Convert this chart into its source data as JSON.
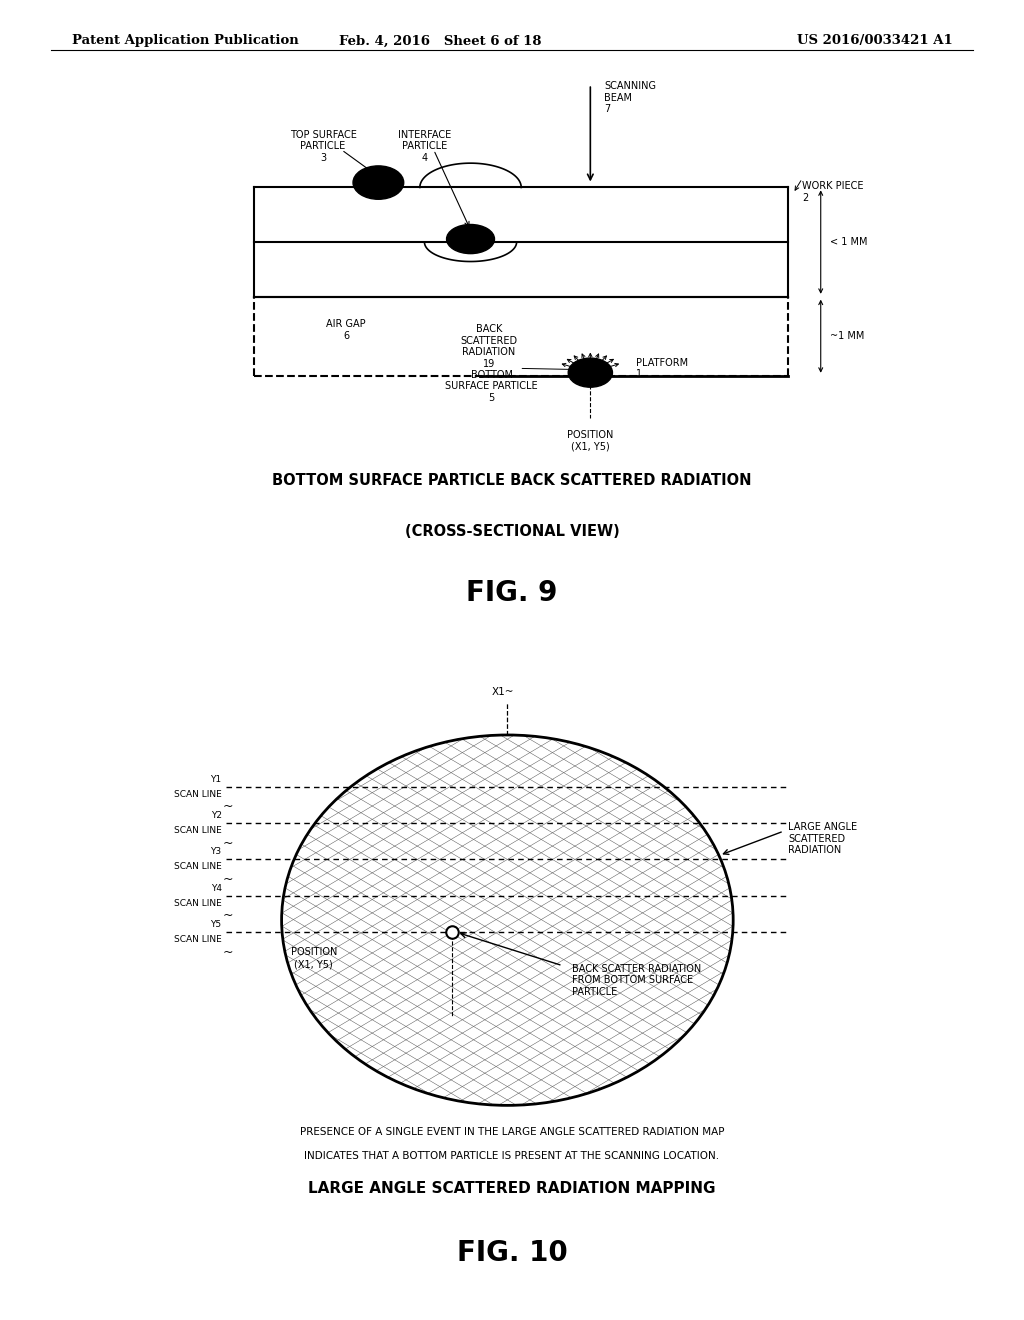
{
  "background_color": "#ffffff",
  "header_left": "Patent Application Publication",
  "header_mid": "Feb. 4, 2016   Sheet 6 of 18",
  "header_right": "US 2016/0033421 A1",
  "fig9": {
    "title_line1": "BOTTOM SURFACE PARTICLE BACK SCATTERED RADIATION",
    "title_line2": "(CROSS-SECTIONAL VIEW)",
    "title_fig": "FIG. 9"
  },
  "fig10": {
    "title_line1": "LARGE ANGLE SCATTERED RADIATION MAPPING",
    "title_fig": "FIG. 10",
    "caption_line1": "PRESENCE OF A SINGLE EVENT IN THE LARGE ANGLE SCATTERED RADIATION MAP",
    "caption_line2": "INDICATES THAT A BOTTOM PARTICLE IS PRESENT AT THE SCANNING LOCATION."
  }
}
